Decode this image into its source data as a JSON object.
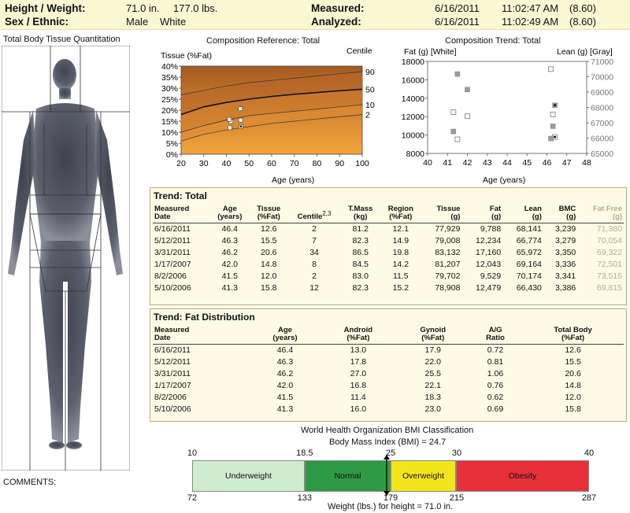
{
  "header": {
    "height_weight_label": "Height / Weight:",
    "height_value": "71.0 in.",
    "weight_value": "177.0 lbs.",
    "sex_ethnic_label": "Sex / Ethnic:",
    "sex_value": "Male",
    "ethnic_value": "White",
    "measured_label": "Measured:",
    "measured_date": "6/16/2011",
    "measured_time": "11:02:47 AM",
    "measured_version": "(8.60)",
    "analyzed_label": "Analyzed:",
    "analyzed_date": "6/16/2011",
    "analyzed_time": "11:02:49 AM",
    "analyzed_version": "(8.60)"
  },
  "body_image": {
    "title": "Total Body Tissue Quantitation"
  },
  "comments_label": "COMMENTS:",
  "colors": {
    "header_bg": "#fbf7d3",
    "panel_bg": "#fdfbe6",
    "underweight": "#cfeccf",
    "normal": "#2e9a46",
    "overweight": "#f2e51a",
    "obesity": "#e8303a"
  },
  "chart_data": [
    {
      "type": "line",
      "title": "Composition Reference: Total",
      "ylabel": "Tissue (%Fat)",
      "y2label": "Centile",
      "xlabel": "Age (years)",
      "xlim": [
        20,
        100
      ],
      "ylim": [
        0,
        40
      ],
      "x_ticks": [
        "20",
        "30",
        "40",
        "50",
        "60",
        "70",
        "80",
        "90",
        "100"
      ],
      "y_ticks": [
        "0%",
        "5%",
        "10%",
        "15%",
        "20%",
        "25%",
        "30%",
        "35%",
        "40%"
      ],
      "centile_labels": [
        "90",
        "50",
        "10",
        "2"
      ],
      "centile_curves": [
        {
          "name": "90",
          "x": [
            20,
            30,
            40,
            50,
            60,
            70,
            80,
            90,
            100
          ],
          "y": [
            27.0,
            29.0,
            31.0,
            32.5,
            33.5,
            34.5,
            35.5,
            36.5,
            37.5
          ]
        },
        {
          "name": "50",
          "x": [
            20,
            30,
            40,
            50,
            60,
            70,
            80,
            90,
            100
          ],
          "y": [
            18.0,
            21.5,
            23.5,
            25.0,
            26.2,
            27.2,
            28.0,
            28.8,
            29.5
          ]
        },
        {
          "name": "10",
          "x": [
            20,
            30,
            40,
            50,
            60,
            70,
            80,
            90,
            100
          ],
          "y": [
            10.0,
            13.0,
            15.5,
            17.5,
            18.5,
            19.5,
            20.5,
            21.5,
            22.5
          ]
        },
        {
          "name": "2",
          "x": [
            20,
            30,
            40,
            50,
            60,
            70,
            80,
            90,
            100
          ],
          "y": [
            6.0,
            9.0,
            11.0,
            12.5,
            14.0,
            15.0,
            16.0,
            17.0,
            18.0
          ]
        }
      ],
      "points": [
        {
          "x": 46.4,
          "y": 12.6,
          "current": true
        },
        {
          "x": 46.3,
          "y": 15.5
        },
        {
          "x": 46.2,
          "y": 20.6
        },
        {
          "x": 42.0,
          "y": 14.8
        },
        {
          "x": 41.5,
          "y": 12.0
        },
        {
          "x": 41.3,
          "y": 15.8
        }
      ]
    },
    {
      "type": "scatter",
      "title": "Composition Trend: Total",
      "ylabel": "Fat (g) [White]",
      "y2label": "Lean (g) [Gray]",
      "xlabel": "Age (years)",
      "xlim": [
        40,
        48
      ],
      "ylim": [
        8000,
        18000
      ],
      "y2lim": [
        65000,
        71000
      ],
      "x_ticks": [
        "40",
        "41",
        "42",
        "43",
        "44",
        "45",
        "46",
        "47",
        "48"
      ],
      "y_ticks": [
        "8000",
        "10000",
        "12000",
        "14000",
        "16000",
        "18000"
      ],
      "y2_ticks": [
        "65000",
        "66000",
        "67000",
        "68000",
        "69000",
        "70000",
        "71000"
      ],
      "series": [
        {
          "name": "Fat",
          "x": [
            46.4,
            46.3,
            46.2,
            42.0,
            41.5,
            41.3
          ],
          "values": [
            9788,
            12234,
            17160,
            12043,
            9529,
            12479
          ]
        },
        {
          "name": "Lean",
          "x": [
            46.4,
            46.3,
            46.2,
            42.0,
            41.5,
            41.3
          ],
          "values": [
            68141,
            66774,
            65972,
            69164,
            70174,
            66430
          ]
        }
      ]
    }
  ],
  "trend_total": {
    "title": "Trend: Total",
    "centile_superscript": "2,3",
    "headers": [
      [
        "Measured",
        "Date"
      ],
      [
        "Age",
        "(years)"
      ],
      [
        "Tissue",
        "(%Fat)"
      ],
      [
        "Centile",
        ""
      ],
      [
        "T.Mass",
        "(kg)"
      ],
      [
        "Region",
        "(%Fat)"
      ],
      [
        "Tissue",
        "(g)"
      ],
      [
        "Fat",
        "(g)"
      ],
      [
        "Lean",
        "(g)"
      ],
      [
        "BMC",
        "(g)"
      ],
      [
        "Fat Free",
        "(g)"
      ]
    ],
    "rows": [
      [
        "6/16/2011",
        "46.4",
        "12.6",
        "2",
        "81.2",
        "12.1",
        "77,929",
        "9,788",
        "68,141",
        "3,239",
        "71,380"
      ],
      [
        "5/12/2011",
        "46.3",
        "15.5",
        "7",
        "82.3",
        "14.9",
        "79,008",
        "12,234",
        "66,774",
        "3,279",
        "70,054"
      ],
      [
        "3/31/2011",
        "46.2",
        "20.6",
        "34",
        "86.5",
        "19.8",
        "83,132",
        "17,160",
        "65,972",
        "3,350",
        "69,322"
      ],
      [
        "1/17/2007",
        "42.0",
        "14.8",
        "8",
        "84.5",
        "14.2",
        "81,207",
        "12,043",
        "69,164",
        "3,336",
        "72,501"
      ],
      [
        "8/2/2006",
        "41.5",
        "12.0",
        "2",
        "83.0",
        "11.5",
        "79,702",
        "9,529",
        "70,174",
        "3,341",
        "73,515"
      ],
      [
        "5/10/2006",
        "41.3",
        "15.8",
        "12",
        "82.3",
        "15.2",
        "78,908",
        "12,479",
        "66,430",
        "3,386",
        "69,815"
      ]
    ]
  },
  "trend_fat": {
    "title": "Trend: Fat Distribution",
    "headers": [
      [
        "Measured",
        "Date"
      ],
      [
        "Age",
        "(years)"
      ],
      [
        "Android",
        "(%Fat)"
      ],
      [
        "Gynoid",
        "(%Fat)"
      ],
      [
        "A/G",
        "Ratio"
      ],
      [
        "Total Body",
        "(%Fat)"
      ]
    ],
    "rows": [
      [
        "6/16/2011",
        "46.4",
        "13.0",
        "17.9",
        "0.72",
        "12.6"
      ],
      [
        "5/12/2011",
        "46.3",
        "17.8",
        "22.0",
        "0.81",
        "15.5"
      ],
      [
        "3/31/2011",
        "46.2",
        "27.0",
        "25.5",
        "1.06",
        "20.6"
      ],
      [
        "1/17/2007",
        "42.0",
        "16.8",
        "22.1",
        "0.76",
        "14.8"
      ],
      [
        "8/2/2006",
        "41.5",
        "11.4",
        "18.3",
        "0.62",
        "12.0"
      ],
      [
        "5/10/2006",
        "41.3",
        "16.0",
        "23.0",
        "0.69",
        "15.8"
      ]
    ]
  },
  "bmi": {
    "title": "World Health Organization BMI Classification",
    "bmi_label": "Body Mass Index (BMI) = 24.7",
    "bmi_value": 24.7,
    "bmi_range": [
      10,
      40
    ],
    "top_ticks": [
      "10",
      "18.5",
      "25",
      "30",
      "40"
    ],
    "bottom_ticks": [
      "72",
      "133",
      "179",
      "215",
      "287"
    ],
    "categories": [
      "Underweight",
      "Normal",
      "Overweight",
      "Obesity"
    ],
    "weight_label": "Weight (lbs.) for height = 71.0 in."
  }
}
